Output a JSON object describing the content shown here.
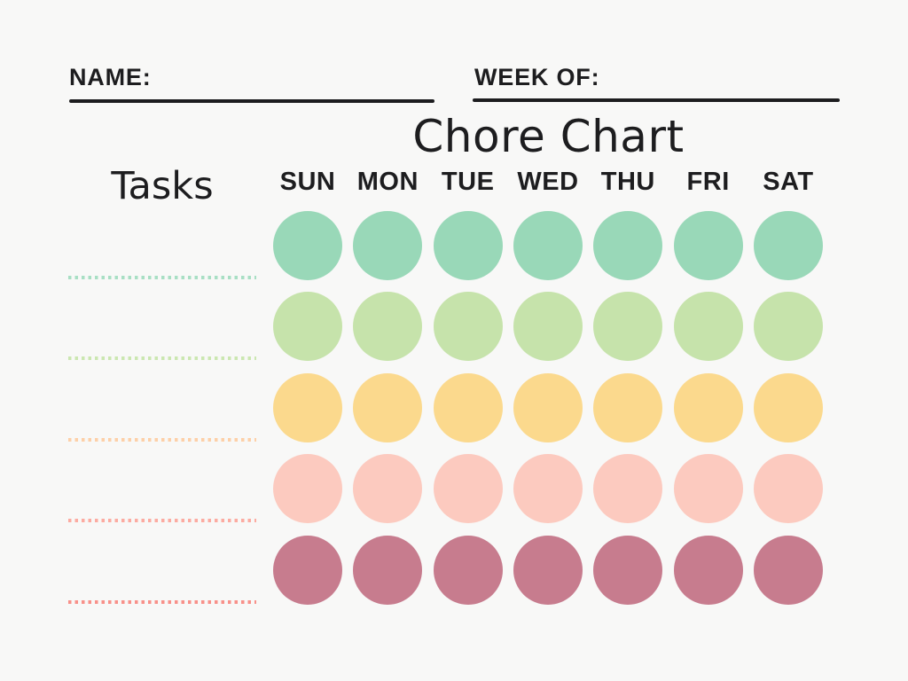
{
  "page": {
    "background": "#f8f8f7",
    "text_color": "#1d1d1f"
  },
  "header": {
    "name_label": "NAME:",
    "week_label": "WEEK OF:"
  },
  "title": "Chore Chart",
  "table": {
    "tasks_header": "Tasks",
    "day_headers": [
      "SUN",
      "MON",
      "TUE",
      "WED",
      "THU",
      "FRI",
      "SAT"
    ],
    "rows": [
      {
        "circle_color": "#99d8b8",
        "line_color": "#a8dfc4"
      },
      {
        "circle_color": "#c6e3ab",
        "line_color": "#cbe7b1"
      },
      {
        "circle_color": "#fbd98d",
        "line_color": "#fdd0a8"
      },
      {
        "circle_color": "#fccabf",
        "line_color": "#fcaba1"
      },
      {
        "circle_color": "#c77c8e",
        "line_color": "#f8918a"
      }
    ]
  }
}
